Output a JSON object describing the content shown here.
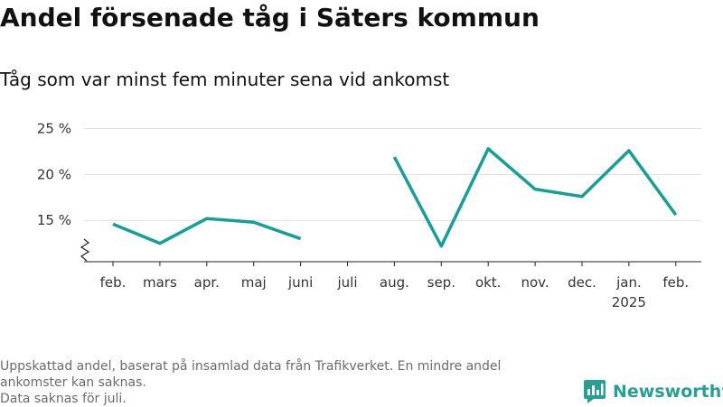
{
  "header": {
    "title": "Andel försenade tåg i Säters kommun",
    "subtitle": "Tåg som var minst fem minuter sena vid ankomst"
  },
  "footer": {
    "lines": [
      "Uppskattad andel, baserat på insamlad data från Trafikverket. En mindre andel",
      "ankomster kan saknas.",
      "Data saknas för juli."
    ]
  },
  "brand": {
    "name": "Newsworthy",
    "icon": "newsworthy-logo-icon",
    "color": "#25a093"
  },
  "chart_data": {
    "type": "line",
    "title": "",
    "xlabel": "",
    "ylabel": "",
    "categories": [
      "feb.",
      "mars",
      "apr.",
      "maj",
      "juni",
      "juli",
      "aug.",
      "sep.",
      "okt.",
      "nov.",
      "dec.",
      "jan.",
      "feb."
    ],
    "category_sublabels": [
      "",
      "",
      "",
      "",
      "",
      "",
      "",
      "",
      "",
      "",
      "",
      "2025",
      ""
    ],
    "series": [
      {
        "color": "#14a096",
        "values": [
          14.6,
          12.5,
          15.2,
          14.8,
          13.0,
          null,
          21.9,
          12.2,
          22.8,
          18.4,
          17.6,
          22.6,
          15.6
        ]
      }
    ],
    "ylim": [
      10.5,
      25
    ],
    "yticks": [
      15,
      20,
      25
    ],
    "ytick_labels": [
      "15 %",
      "20 %",
      "25 %"
    ],
    "axis_break": true,
    "grid": true,
    "legend": "none"
  }
}
